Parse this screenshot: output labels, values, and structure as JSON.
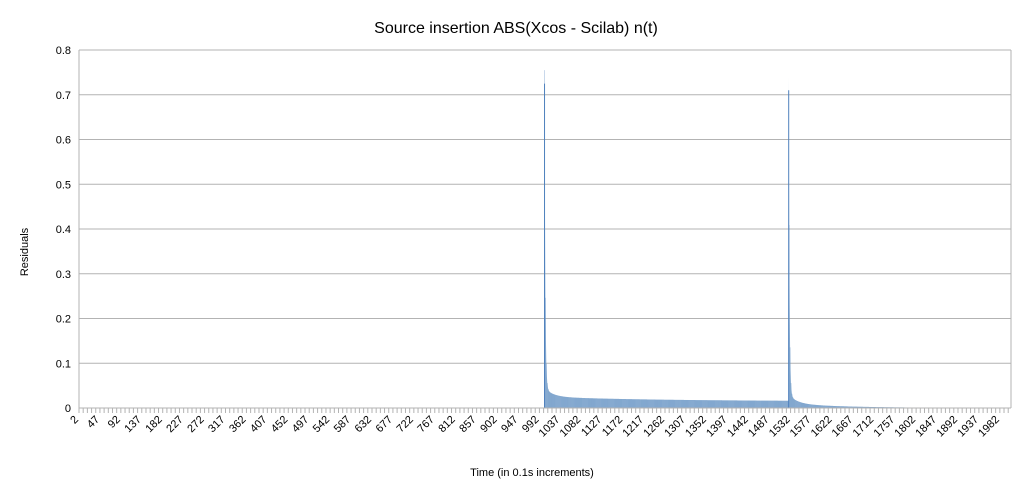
{
  "chart_data": {
    "type": "area",
    "title": "Source insertion ABS(Xcos - Scilab) n(t)",
    "xlabel": "Time (in 0.1s increments)",
    "ylabel": "Residuals",
    "ylim": [
      0,
      0.8
    ],
    "yticks": [
      "0",
      "0.1",
      "0.2",
      "0.3",
      "0.4",
      "0.5",
      "0.6",
      "0.7",
      "0.8"
    ],
    "xlim": [
      2,
      2006
    ],
    "xticks": [
      "2",
      "47",
      "92",
      "137",
      "182",
      "227",
      "272",
      "317",
      "362",
      "407",
      "452",
      "497",
      "542",
      "587",
      "632",
      "677",
      "722",
      "767",
      "812",
      "857",
      "902",
      "947",
      "992",
      "1037",
      "1082",
      "1127",
      "1172",
      "1217",
      "1262",
      "1307",
      "1352",
      "1397",
      "1442",
      "1487",
      "1532",
      "1577",
      "1622",
      "1667",
      "1712",
      "1757",
      "1802",
      "1847",
      "1892",
      "1937",
      "1982"
    ],
    "grid": true,
    "legend": "none",
    "color": "#7ea6cc",
    "peak_color": "#4f81bd",
    "segments": [
      {
        "start": 2,
        "end": 1003,
        "value": 0
      },
      {
        "start": 1003,
        "end": 1528,
        "peak": 0.725,
        "floor": 0.015
      },
      {
        "start": 1528,
        "end": 2006,
        "peak": 0.71,
        "floor": 0.0
      }
    ]
  }
}
